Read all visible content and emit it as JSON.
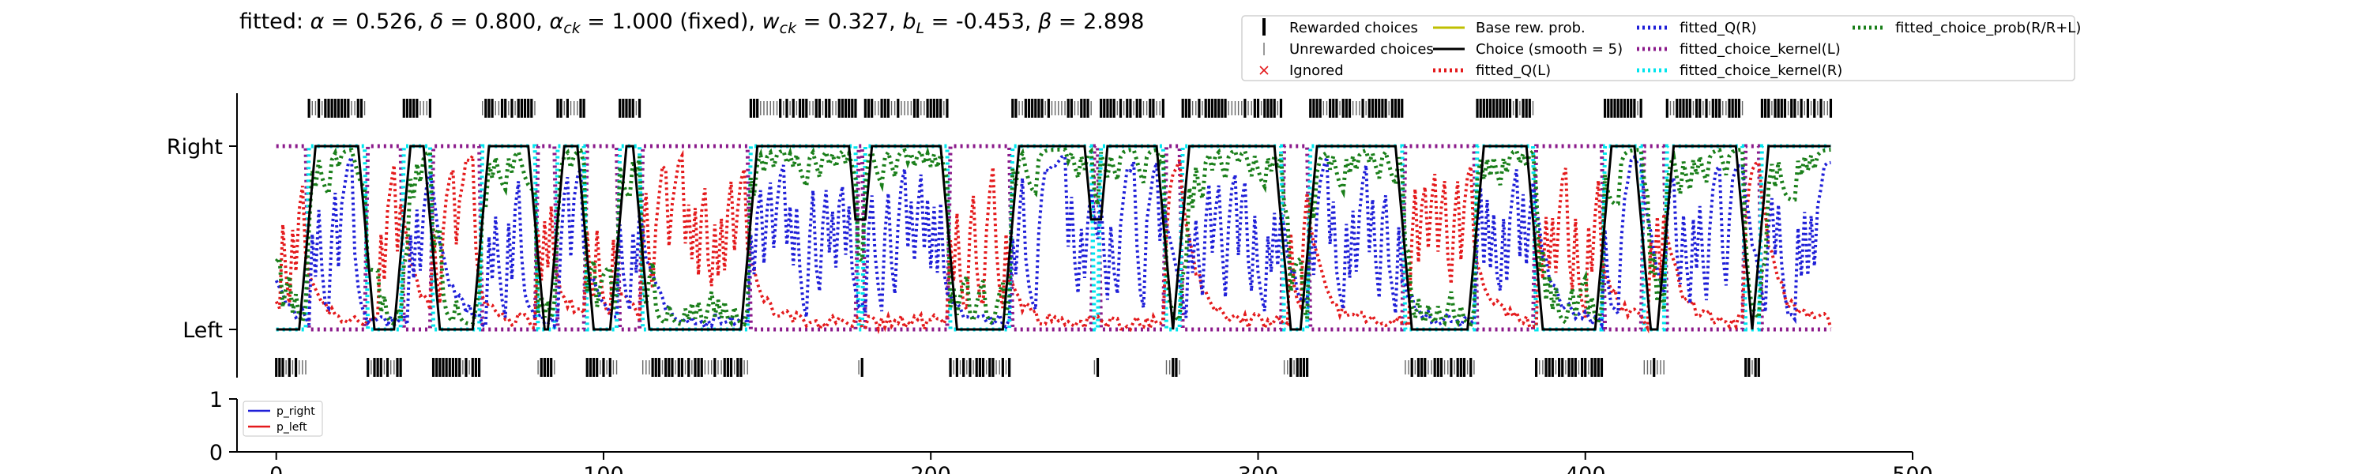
{
  "chart_data": {
    "type": "line",
    "title": {
      "prefix": "fitted: ",
      "parts": [
        {
          "sym": "α",
          "sub": "",
          "value": " = 0.526, "
        },
        {
          "sym": "δ",
          "sub": "",
          "value": " = 0.800, "
        },
        {
          "sym": "α",
          "sub": "ck",
          "value": " = 1.000 (fixed), "
        },
        {
          "sym": "w",
          "sub": "ck",
          "value": " = 0.327, "
        },
        {
          "sym": "b",
          "sub": "L",
          "value": " = -0.453, "
        },
        {
          "sym": "β",
          "sub": "",
          "value": " = 2.898"
        }
      ]
    },
    "xlim": [
      -12,
      500
    ],
    "xticks": [
      "0",
      "100",
      "200",
      "300",
      "400",
      "500"
    ],
    "yticks": [
      "Left",
      "Right"
    ],
    "n_trials": 476,
    "legend": [
      {
        "label": "Rewarded choices",
        "marker": "thick-tick",
        "color": "#000000"
      },
      {
        "label": "Unrewarded choices",
        "marker": "thin-tick",
        "color": "#777777"
      },
      {
        "label": "Ignored",
        "marker": "x",
        "color": "#e41a1c"
      },
      {
        "label": "Base rew. prob.",
        "marker": "line",
        "color": "#bfbf00"
      },
      {
        "label": "Choice (smooth = 5)",
        "marker": "line",
        "color": "#000000"
      },
      {
        "label": "fitted_Q(L)",
        "marker": "dotted",
        "color": "#e41a1c"
      },
      {
        "label": "fitted_Q(R)",
        "marker": "dotted",
        "color": "#1f1fd8"
      },
      {
        "label": "fitted_choice_kernel(L)",
        "marker": "dotted",
        "color": "#8b1a8b"
      },
      {
        "label": "fitted_choice_kernel(R)",
        "marker": "dotted",
        "color": "#00e5ee"
      },
      {
        "label": "fitted_choice_prob(R/R+L)",
        "marker": "dotted",
        "color": "#1a7f1a"
      }
    ],
    "lower_panel": {
      "yticks": [
        "0",
        "1"
      ],
      "legend": [
        {
          "label": "p_right",
          "color": "#1f1fd8"
        },
        {
          "label": "p_left",
          "color": "#e41a1c"
        }
      ]
    },
    "choice_blocks": [
      {
        "side": "L",
        "start": 0,
        "end": 10
      },
      {
        "side": "R",
        "start": 10,
        "end": 28
      },
      {
        "side": "L",
        "start": 28,
        "end": 39
      },
      {
        "side": "R",
        "start": 39,
        "end": 48
      },
      {
        "side": "L",
        "start": 48,
        "end": 63
      },
      {
        "side": "R",
        "start": 63,
        "end": 80
      },
      {
        "side": "L",
        "start": 80,
        "end": 86
      },
      {
        "side": "R",
        "start": 86,
        "end": 95
      },
      {
        "side": "L",
        "start": 95,
        "end": 105
      },
      {
        "side": "R",
        "start": 105,
        "end": 112
      },
      {
        "side": "L",
        "start": 112,
        "end": 145
      },
      {
        "side": "R",
        "start": 145,
        "end": 178
      },
      {
        "side": "L",
        "start": 178,
        "end": 180
      },
      {
        "side": "R",
        "start": 180,
        "end": 206
      },
      {
        "side": "L",
        "start": 206,
        "end": 225
      },
      {
        "side": "R",
        "start": 225,
        "end": 250
      },
      {
        "side": "L",
        "start": 250,
        "end": 252
      },
      {
        "side": "R",
        "start": 252,
        "end": 272
      },
      {
        "side": "L",
        "start": 272,
        "end": 277
      },
      {
        "side": "R",
        "start": 277,
        "end": 308
      },
      {
        "side": "L",
        "start": 308,
        "end": 316
      },
      {
        "side": "R",
        "start": 316,
        "end": 345
      },
      {
        "side": "L",
        "start": 345,
        "end": 367
      },
      {
        "side": "R",
        "start": 367,
        "end": 385
      },
      {
        "side": "L",
        "start": 385,
        "end": 406
      },
      {
        "side": "R",
        "start": 406,
        "end": 418
      },
      {
        "side": "L",
        "start": 418,
        "end": 425
      },
      {
        "side": "R",
        "start": 425,
        "end": 449
      },
      {
        "side": "L",
        "start": 449,
        "end": 454
      },
      {
        "side": "R",
        "start": 454,
        "end": 476
      }
    ]
  }
}
